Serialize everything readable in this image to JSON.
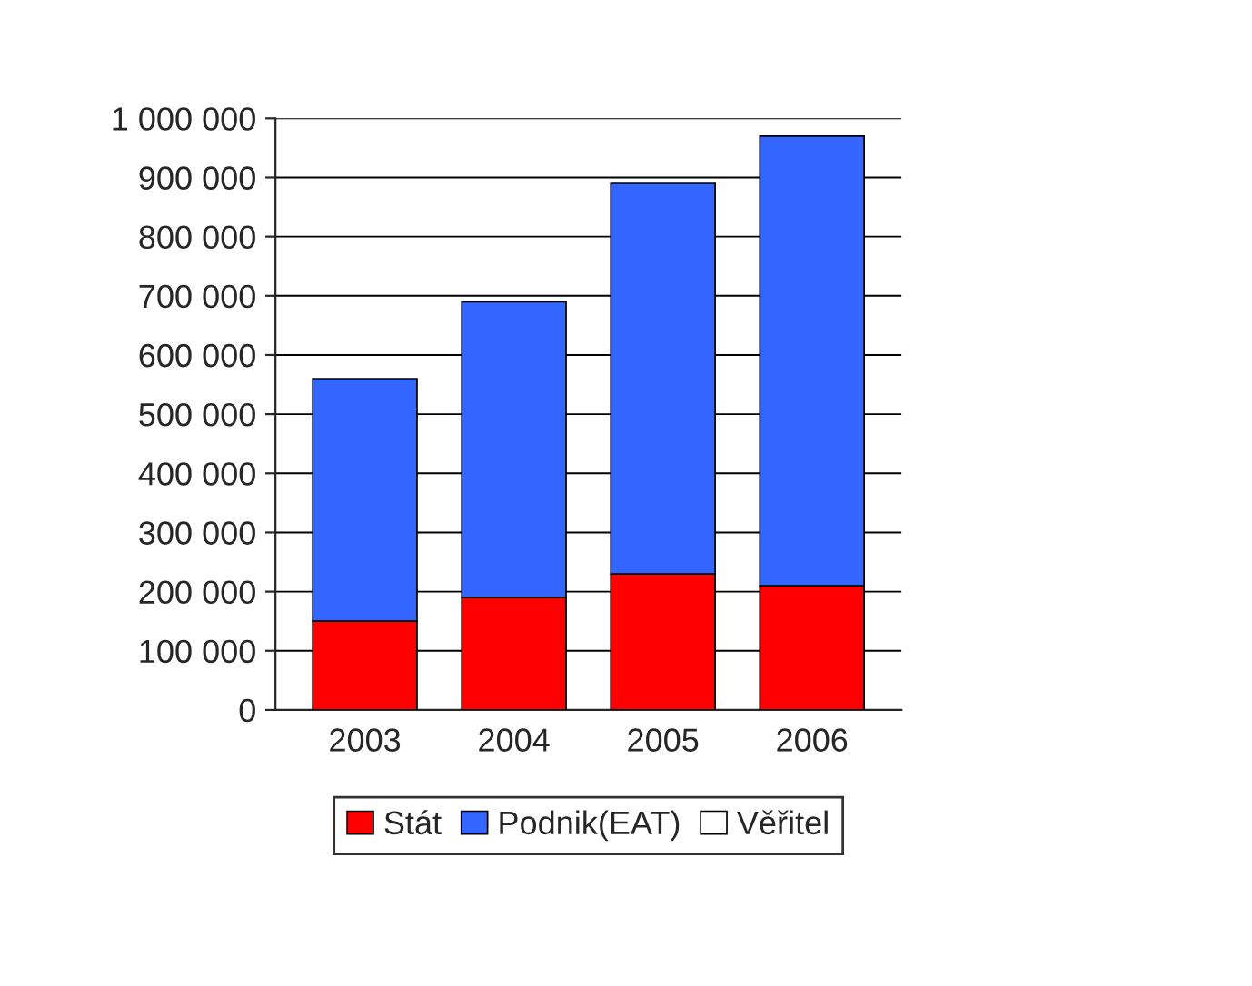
{
  "chart_data": {
    "type": "bar",
    "stacked": true,
    "categories": [
      "2003",
      "2004",
      "2005",
      "2006"
    ],
    "series": [
      {
        "name": "Stát",
        "color": "#ff0000",
        "values": [
          150000,
          190000,
          230000,
          210000
        ]
      },
      {
        "name": "Podnik(EAT)",
        "color": "#3366ff",
        "values": [
          410000,
          500000,
          660000,
          760000
        ]
      },
      {
        "name": "Věřitel",
        "color": "#ffffff",
        "values": [
          0,
          0,
          0,
          0
        ]
      }
    ],
    "ylim": [
      0,
      1000000
    ],
    "yticks": [
      0,
      {
        "value": 100000,
        "label": "100 000"
      },
      {
        "value": 200000,
        "label": "200 000"
      },
      {
        "value": 300000,
        "label": "300 000"
      },
      {
        "value": 400000,
        "label": "400 000"
      },
      {
        "value": 500000,
        "label": "500 000"
      },
      {
        "value": 600000,
        "label": "600 000"
      },
      {
        "value": 700000,
        "label": "700 000"
      },
      {
        "value": 800000,
        "label": "800 000"
      },
      {
        "value": 900000,
        "label": "900 000"
      },
      {
        "value": 1000000,
        "label": "1 000 000"
      }
    ],
    "grid": "y",
    "legend": "bottom"
  }
}
